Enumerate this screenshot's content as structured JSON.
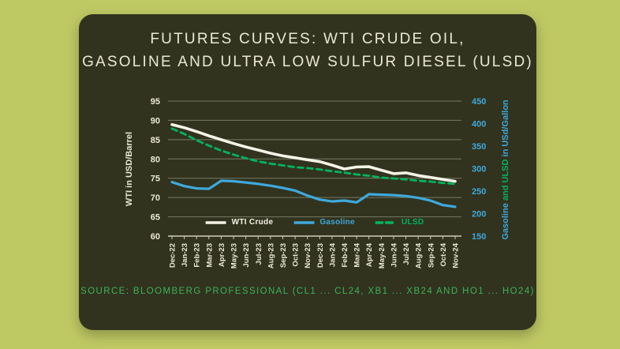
{
  "page": {
    "background": "#bfc964"
  },
  "card": {
    "background": "#31331e",
    "title_line1": "FUTURES CURVES: WTI CRUDE OIL,",
    "title_line2": "GASOLINE AND ULTRA LOW SULFUR DIESEL (ULSD)",
    "source": "SOURCE: BLOOMBERG PROFESSIONAL (CL1 ... CL24, XB1 ... XB24 AND HO1 ... HO24)"
  },
  "chart_data": {
    "type": "line",
    "title": "Futures Curves: WTI Crude Oil, Gasoline and Ultra Low Sulfur Diesel (ULSD)",
    "grid": true,
    "legend_position": "bottom-center",
    "colors": {
      "cream": "#ece9d8",
      "blue": "#3fa9dc",
      "green": "#04b35f",
      "grid": "#767a64",
      "axis_line": "#cfcdba"
    },
    "categories": [
      "Dec-22",
      "Jan-23",
      "Feb-23",
      "Mar-23",
      "Apr-23",
      "May-23",
      "Jun-23",
      "Jul-23",
      "Aug-23",
      "Sep-23",
      "Oct-23",
      "Nov-23",
      "Dec-23",
      "Jan-24",
      "Feb-24",
      "Mar-24",
      "Apr-24",
      "May-24",
      "Jun-24",
      "Jul-24",
      "Aug-24",
      "Sep-24",
      "Oct-24",
      "Nov-24"
    ],
    "left_axis": {
      "label": "WTI in USD/Barrel",
      "min": 60,
      "max": 95,
      "ticks": [
        95,
        90,
        85,
        80,
        75,
        70,
        65,
        60
      ]
    },
    "right_axis": {
      "label_parts": [
        {
          "text": "Gasoline ",
          "color": "#3fa9dc"
        },
        {
          "text": "and ULSD",
          "color": "#04b35f"
        },
        {
          "text": " in USd/Gallon",
          "color": "#3fa9dc"
        }
      ],
      "min": 150,
      "max": 450,
      "ticks": [
        450,
        400,
        350,
        300,
        250,
        200,
        150
      ]
    },
    "series": [
      {
        "name": "WTI Crude",
        "axis": "left",
        "color": "#f5f3e6",
        "dashed": false,
        "width": 3.6,
        "values": [
          88.9,
          88.1,
          87.1,
          86.0,
          85.0,
          84.0,
          83.1,
          82.3,
          81.5,
          80.8,
          80.3,
          79.8,
          79.3,
          78.4,
          77.4,
          77.9,
          78.0,
          77.1,
          76.2,
          76.4,
          75.7,
          75.2,
          74.7,
          74.2
        ]
      },
      {
        "name": "Gasoline",
        "axis": "right",
        "color": "#3fa9dc",
        "dashed": false,
        "width": 3.2,
        "values": [
          270,
          261,
          256,
          255,
          273,
          272,
          269,
          266,
          262,
          257,
          251,
          240,
          231,
          227,
          229,
          225,
          243,
          242,
          241,
          239,
          235,
          229,
          219,
          215
        ]
      },
      {
        "name": "ULSD",
        "axis": "right",
        "color": "#04b35f",
        "dashed": true,
        "width": 2.8,
        "values": [
          389,
          377,
          363,
          351,
          340,
          331,
          323,
          316,
          311,
          307,
          303,
          301,
          298,
          294,
          291,
          287,
          284,
          280,
          278,
          276,
          273,
          271,
          268,
          266
        ]
      }
    ]
  }
}
